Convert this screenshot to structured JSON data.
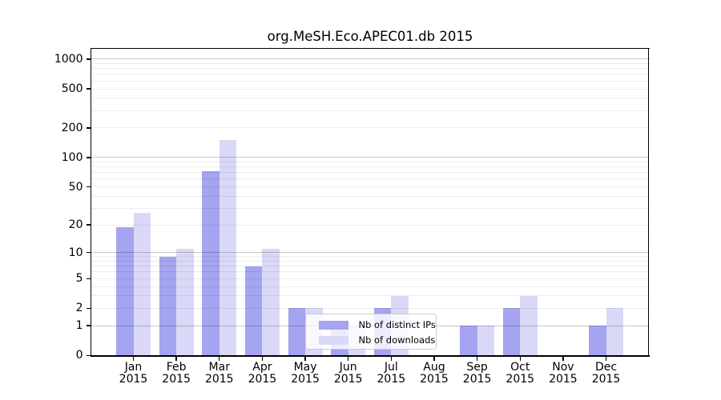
{
  "chart_data": {
    "type": "bar",
    "title": "org.MeSH.Eco.APEC01.db 2015",
    "year_label": "2015",
    "categories": [
      "Jan",
      "Feb",
      "Mar",
      "Apr",
      "May",
      "Jun",
      "Jul",
      "Aug",
      "Sep",
      "Oct",
      "Nov",
      "Dec"
    ],
    "series": [
      {
        "name": "Nb of distinct IPs",
        "color": "#a4a4f0",
        "values": [
          19,
          9,
          73,
          7,
          2,
          1,
          2,
          0,
          1,
          2,
          0,
          1
        ]
      },
      {
        "name": "Nb of downloads",
        "color": "#d9d9f7",
        "values": [
          27,
          11,
          150,
          11,
          2,
          1,
          3,
          0,
          1,
          3,
          0,
          2
        ]
      }
    ],
    "xlabel": "",
    "ylabel": "",
    "yscale": "log1p",
    "ylim": [
      0,
      1300
    ],
    "yticks": [
      0,
      1,
      2,
      5,
      10,
      20,
      50,
      100,
      200,
      500,
      1000
    ],
    "major_gridlines": [
      1,
      10,
      100,
      1000
    ],
    "grid": true,
    "grid_over_bars": true,
    "legend_position": "lower-center"
  },
  "colors": {
    "background": "#ffffff",
    "spine": "#000000",
    "major_grid": "#c8c8c8",
    "minor_grid": "#ececec",
    "legend_border": "#cbcbcb",
    "text": "#000000"
  }
}
